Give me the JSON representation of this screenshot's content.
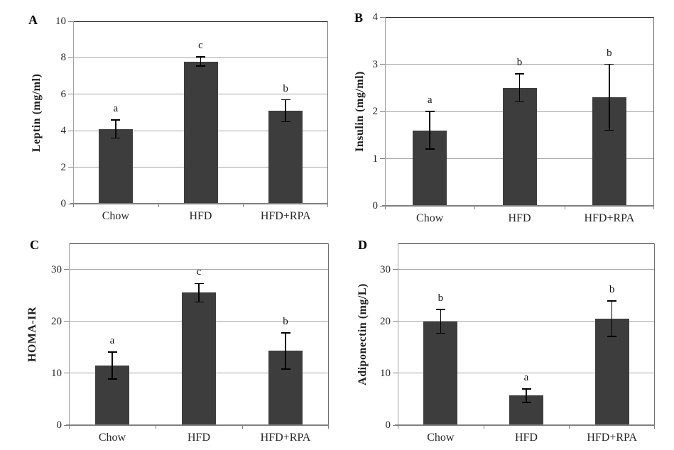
{
  "figure_name": "Metabolic parameters bar chart figure",
  "colors": {
    "bar_fill": "#3d3d3d",
    "gridline": "#a6a6a6",
    "axis": "#808080",
    "left_axis": "#a0a0a0",
    "plot_border_top": "#262626",
    "plot_border_right": "#6e6e6e",
    "error_bar": "#000000",
    "text": "#1f1f1f"
  },
  "chart_data": [
    {
      "type": "bar",
      "panel_label": "A",
      "ylabel": "Leptin (mg/ml)",
      "xlabel": "",
      "categories": [
        "Chow",
        "HFD",
        "HFD+RPA"
      ],
      "values": [
        4.1,
        7.8,
        5.1
      ],
      "errors": [
        0.5,
        0.25,
        0.6
      ],
      "sig_letters": [
        "a",
        "c",
        "b"
      ],
      "ylim": [
        0,
        10
      ],
      "yticks": [
        0,
        2,
        4,
        6,
        8,
        10
      ],
      "grid": true,
      "legend": false
    },
    {
      "type": "bar",
      "panel_label": "B",
      "ylabel": "Insulin (mg/ml)",
      "xlabel": "",
      "categories": [
        "Chow",
        "HFD",
        "HFD+RPA"
      ],
      "values": [
        1.6,
        2.5,
        2.3
      ],
      "errors": [
        0.4,
        0.3,
        0.7
      ],
      "sig_letters": [
        "a",
        "b",
        "b"
      ],
      "ylim": [
        0,
        4
      ],
      "yticks": [
        0,
        1,
        2,
        3,
        4
      ],
      "grid": true,
      "legend": false
    },
    {
      "type": "bar",
      "panel_label": "C",
      "ylabel": "HOMA-IR",
      "xlabel": "",
      "categories": [
        "Chow",
        "HFD",
        "HFD+RPA"
      ],
      "values": [
        11.5,
        25.5,
        14.3
      ],
      "errors": [
        2.6,
        1.8,
        3.5
      ],
      "sig_letters": [
        "a",
        "c",
        "b"
      ],
      "ylim": [
        0,
        35
      ],
      "yticks": [
        0,
        10,
        20,
        30
      ],
      "grid": true,
      "legend": false
    },
    {
      "type": "bar",
      "panel_label": "D",
      "ylabel": "Adiponectin (mg/L)",
      "xlabel": "",
      "categories": [
        "Chow",
        "HFD",
        "HFD+RPA"
      ],
      "values": [
        20.0,
        5.7,
        20.5
      ],
      "errors": [
        2.3,
        1.3,
        3.4
      ],
      "sig_letters": [
        "b",
        "a",
        "b"
      ],
      "ylim": [
        0,
        35
      ],
      "yticks": [
        0,
        10,
        20,
        30
      ],
      "grid": true,
      "legend": false
    }
  ]
}
